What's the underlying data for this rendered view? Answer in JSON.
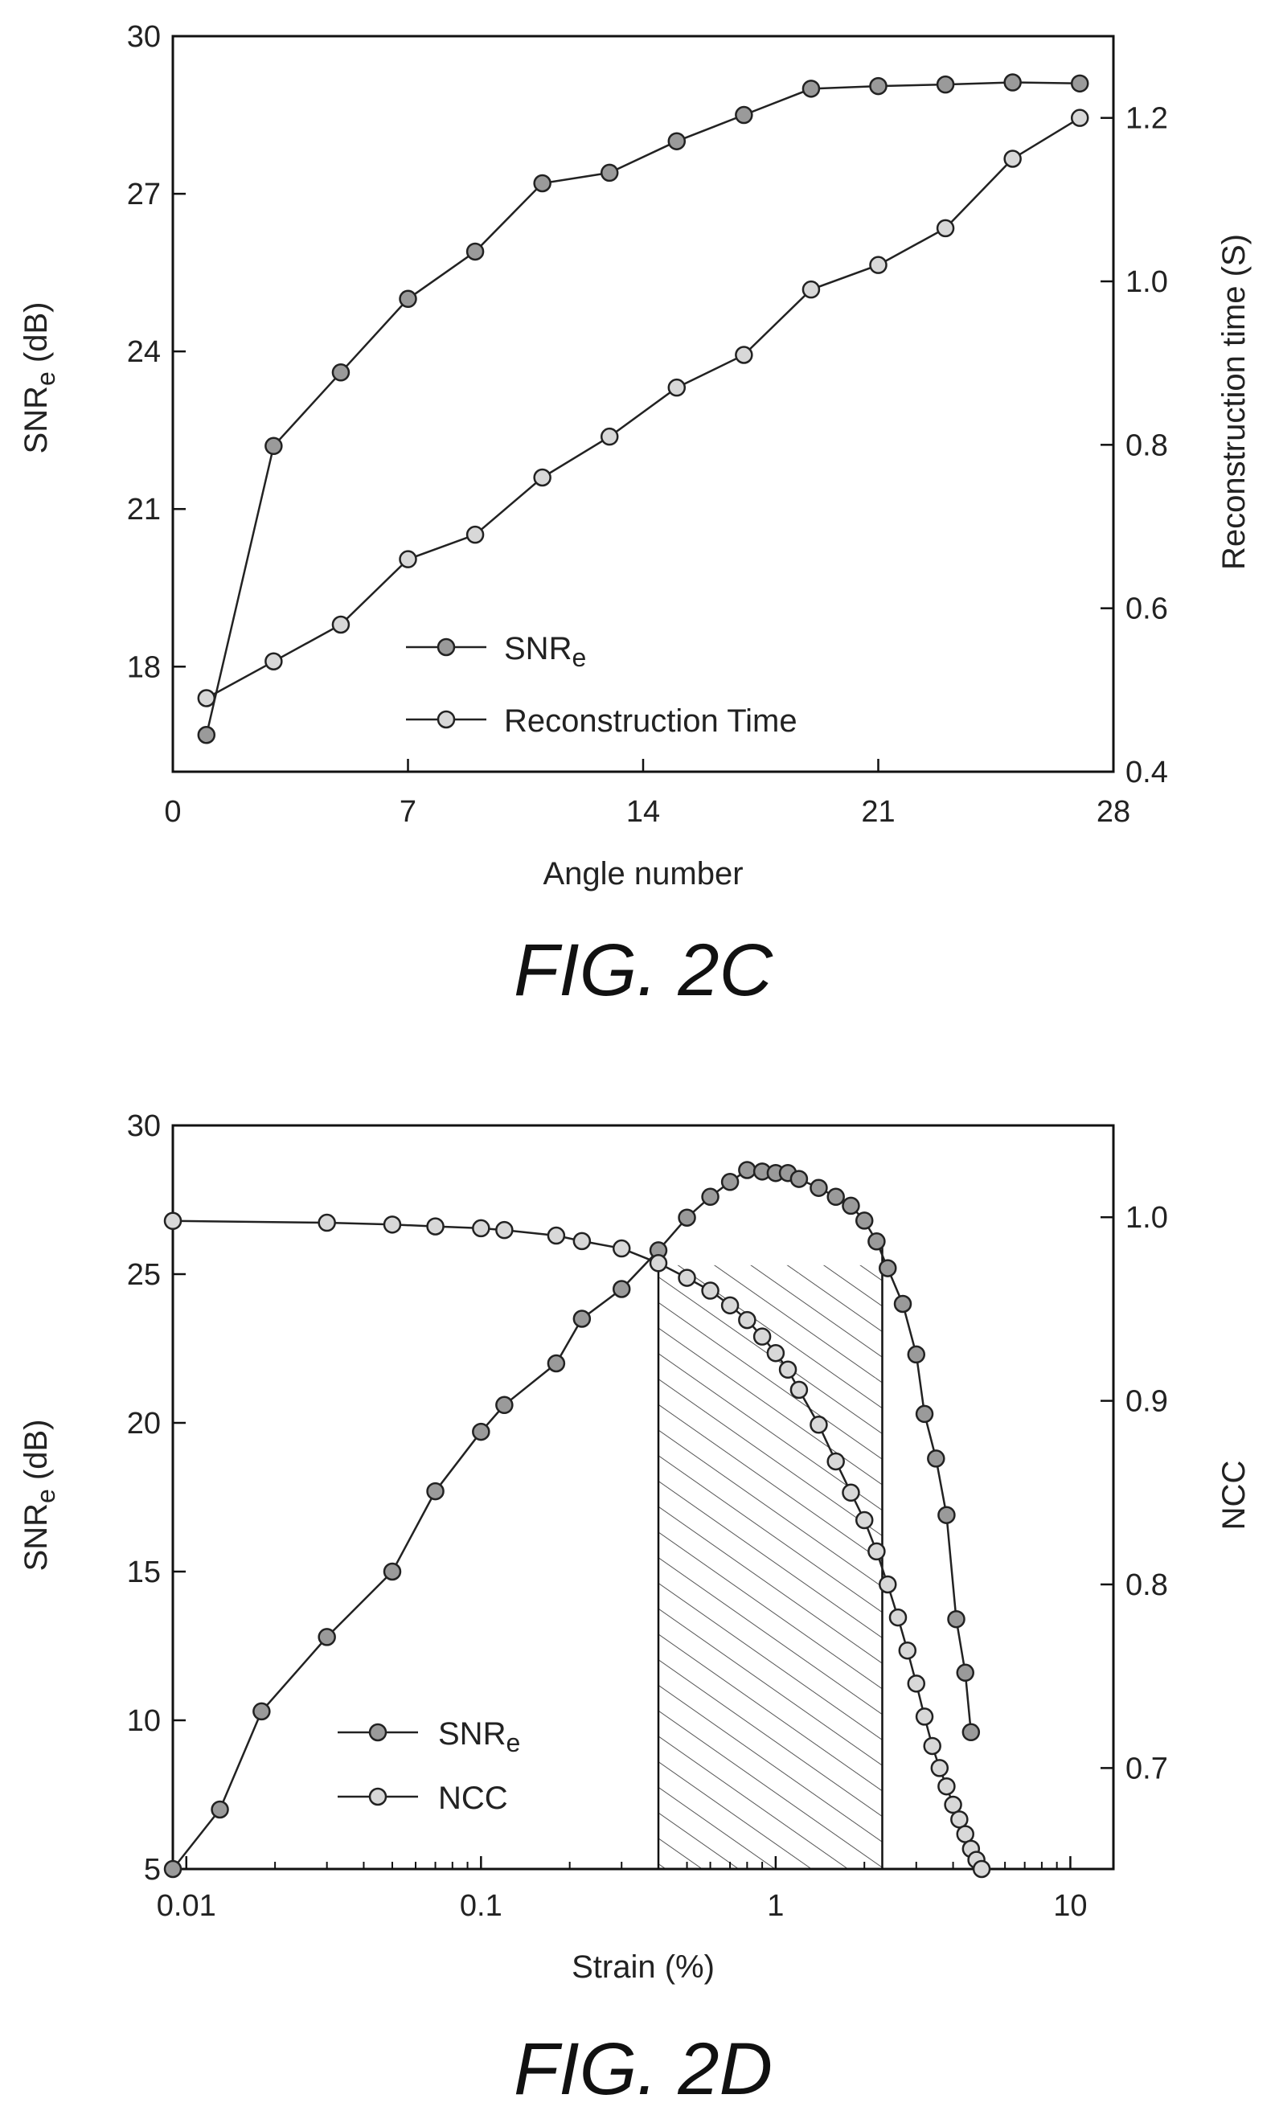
{
  "chart_data": [
    {
      "type": "line",
      "caption": "FIG. 2C",
      "xlabel": "Angle number",
      "ylabel": "SNRe (dB)",
      "ylabel_main": "SNR",
      "ylabel_sub": "e",
      "ylabel_rest": " (dB)",
      "y2label": "Reconstruction time (S)",
      "xlim": [
        0,
        28
      ],
      "ylim": [
        16,
        30
      ],
      "y2lim": [
        0.4,
        1.3
      ],
      "xticks": [
        0,
        7,
        14,
        21,
        28
      ],
      "yticks": [
        18,
        21,
        24,
        27,
        30
      ],
      "y2ticks": [
        0.4,
        0.6,
        0.8,
        1.0,
        1.2
      ],
      "xtick_labels": [
        "0",
        "7",
        "14",
        "21",
        "28"
      ],
      "ytick_labels": [
        "18",
        "21",
        "24",
        "27",
        "30"
      ],
      "y2tick_labels": [
        "0.4",
        "0.6",
        "0.8",
        "1.0",
        "1.2"
      ],
      "grid": false,
      "legend_position": "bottom-center",
      "series": [
        {
          "name": "SNRe",
          "name_main": "SNR",
          "name_sub": "e",
          "axis": "left",
          "marker": "filled",
          "x": [
            1,
            3,
            5,
            7,
            9,
            11,
            13,
            15,
            17,
            19,
            21,
            23,
            25,
            27
          ],
          "values": [
            16.7,
            22.2,
            23.6,
            25.0,
            25.9,
            27.2,
            27.4,
            28.0,
            28.5,
            29.0,
            29.05,
            29.08,
            29.12,
            29.1
          ]
        },
        {
          "name": "Reconstruction Time",
          "axis": "right",
          "marker": "open",
          "x": [
            1,
            3,
            5,
            7,
            9,
            11,
            13,
            15,
            17,
            19,
            21,
            23,
            25,
            27
          ],
          "values": [
            0.49,
            0.535,
            0.58,
            0.66,
            0.69,
            0.76,
            0.81,
            0.87,
            0.91,
            0.99,
            1.02,
            1.065,
            1.15,
            1.2
          ]
        }
      ]
    },
    {
      "type": "line",
      "caption": "FIG. 2D",
      "xlabel": "Strain (%)",
      "ylabel": "SNRe (dB)",
      "ylabel_main": "SNR",
      "ylabel_sub": "e",
      "ylabel_rest": " (dB)",
      "y2label": "NCC",
      "xscale": "log",
      "xlim": [
        0.009,
        14
      ],
      "ylim": [
        5,
        30
      ],
      "y2lim": [
        0.645,
        1.05
      ],
      "xticks": [
        0.01,
        0.1,
        1,
        10
      ],
      "yticks": [
        5,
        10,
        15,
        20,
        25,
        30
      ],
      "y2ticks": [
        0.7,
        0.8,
        0.9,
        1.0
      ],
      "xtick_labels": [
        "0.01",
        "0.1",
        "1",
        "10"
      ],
      "ytick_labels": [
        "5",
        "10",
        "15",
        "20",
        "25",
        "30"
      ],
      "y2tick_labels": [
        "0.7",
        "0.8",
        "0.9",
        "1.0"
      ],
      "shaded_region_x": [
        0.4,
        2.3
      ],
      "grid": false,
      "legend_position": "bottom-left",
      "series": [
        {
          "name": "SNRe",
          "name_main": "SNR",
          "name_sub": "e",
          "axis": "left",
          "marker": "filled",
          "x": [
            0.009,
            0.013,
            0.018,
            0.03,
            0.05,
            0.07,
            0.1,
            0.12,
            0.18,
            0.22,
            0.3,
            0.4,
            0.5,
            0.6,
            0.7,
            0.8,
            0.9,
            1.0,
            1.1,
            1.2,
            1.4,
            1.6,
            1.8,
            2.0,
            2.2,
            2.4,
            2.7,
            3.0,
            3.2,
            3.5,
            3.8,
            4.1,
            4.4,
            4.6
          ],
          "values": [
            5.0,
            7.0,
            10.3,
            12.8,
            15.0,
            17.7,
            19.7,
            20.6,
            22.0,
            23.5,
            24.5,
            25.8,
            26.9,
            27.6,
            28.1,
            28.5,
            28.45,
            28.4,
            28.4,
            28.2,
            27.9,
            27.6,
            27.3,
            26.8,
            26.1,
            25.2,
            24.0,
            22.3,
            20.3,
            18.8,
            16.9,
            13.4,
            11.6,
            9.6
          ]
        },
        {
          "name": "NCC",
          "axis": "right",
          "marker": "open",
          "x": [
            0.009,
            0.03,
            0.05,
            0.07,
            0.1,
            0.12,
            0.18,
            0.22,
            0.3,
            0.4,
            0.5,
            0.6,
            0.7,
            0.8,
            0.9,
            1.0,
            1.1,
            1.2,
            1.4,
            1.6,
            1.8,
            2.0,
            2.2,
            2.4,
            2.6,
            2.8,
            3.0,
            3.2,
            3.4,
            3.6,
            3.8,
            4.0,
            4.2,
            4.4,
            4.6,
            4.8,
            5.0
          ],
          "values": [
            0.998,
            0.997,
            0.996,
            0.995,
            0.994,
            0.993,
            0.99,
            0.987,
            0.983,
            0.975,
            0.967,
            0.96,
            0.952,
            0.944,
            0.935,
            0.926,
            0.917,
            0.906,
            0.887,
            0.867,
            0.85,
            0.835,
            0.818,
            0.8,
            0.782,
            0.764,
            0.746,
            0.728,
            0.712,
            0.7,
            0.69,
            0.68,
            0.672,
            0.664,
            0.656,
            0.65,
            0.645
          ]
        }
      ]
    }
  ]
}
